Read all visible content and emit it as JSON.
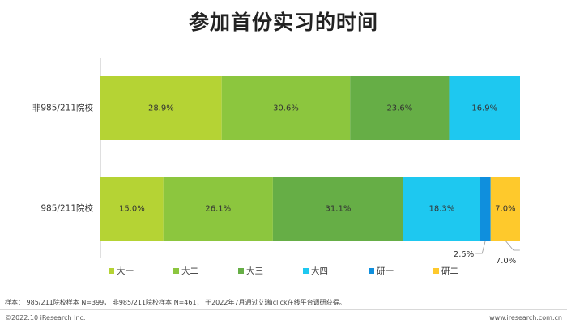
{
  "title": "参加首份实习的时间",
  "chart_data": {
    "type": "bar",
    "orientation": "horizontal",
    "stacked": true,
    "categories": [
      "非985/211院校",
      "985/211院校"
    ],
    "series": [
      {
        "name": "大一",
        "color": "#b5d334",
        "values": [
          28.9,
          15.0
        ],
        "labels": [
          "28.9%",
          "15.0%"
        ]
      },
      {
        "name": "大二",
        "color": "#8cc63e",
        "values": [
          30.6,
          26.1
        ],
        "labels": [
          "30.6%",
          "26.1%"
        ]
      },
      {
        "name": "大三",
        "color": "#66ae46",
        "values": [
          23.6,
          31.1
        ],
        "labels": [
          "23.6%",
          "31.1%"
        ]
      },
      {
        "name": "大四",
        "color": "#1ec8f0",
        "values": [
          16.9,
          18.3
        ],
        "labels": [
          "16.9%",
          "18.3%"
        ]
      },
      {
        "name": "研一",
        "color": "#0f8fdd",
        "values": [
          0,
          2.5
        ],
        "labels": [
          "",
          "2.5%"
        ]
      },
      {
        "name": "研二",
        "color": "#fec92c",
        "values": [
          0,
          7.0
        ],
        "labels": [
          "",
          "7.0%"
        ]
      }
    ],
    "xlim": [
      0,
      100
    ],
    "grid": false,
    "legend_position": "bottom"
  },
  "footer": {
    "note": "样本： 985/211院校样本 N=399， 非985/211院校样本 N=461， 于2022年7月通过艾瑞iclick在线平台调研获得。",
    "copyright": "©2022.10 iResearch Inc.",
    "site": "www.iresearch.com.cn"
  }
}
